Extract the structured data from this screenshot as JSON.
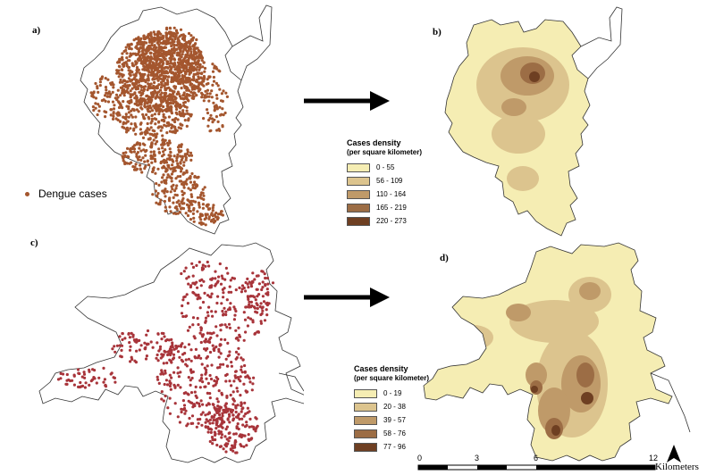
{
  "panels": {
    "a": "a)",
    "b": "b)",
    "c": "c)",
    "d": "d)"
  },
  "point_legend": {
    "label": "Dengue cases",
    "color": "#a4562e"
  },
  "top_density_legend": {
    "title": "Cases density",
    "subtitle": "(per square kilometer)",
    "classes": [
      {
        "label": "0 - 55",
        "color": "#f5edb3"
      },
      {
        "label": "56 - 109",
        "color": "#dcc48e"
      },
      {
        "label": "110 - 164",
        "color": "#bf9a69"
      },
      {
        "label": "165 - 219",
        "color": "#9c6d45"
      },
      {
        "label": "220 - 273",
        "color": "#6e3f22"
      }
    ]
  },
  "bottom_density_legend": {
    "title": "Cases density",
    "subtitle": "(per square kilometer)",
    "classes": [
      {
        "label": "0 - 19",
        "color": "#f5edb3"
      },
      {
        "label": "20 - 38",
        "color": "#dcc48e"
      },
      {
        "label": "39 - 57",
        "color": "#bf9a69"
      },
      {
        "label": "58 - 76",
        "color": "#9c6d45"
      },
      {
        "label": "77 - 96",
        "color": "#6e3f22"
      }
    ]
  },
  "scale_bar": {
    "ticks": [
      "0",
      "3",
      "6",
      "12"
    ],
    "unit": "Kilometers"
  },
  "north_arrow": "north-arrow-icon",
  "colors": {
    "dots_top": "#a4562e",
    "dots_bottom": "#a8343a",
    "boundary": "#333333",
    "arrow": "#000000"
  }
}
